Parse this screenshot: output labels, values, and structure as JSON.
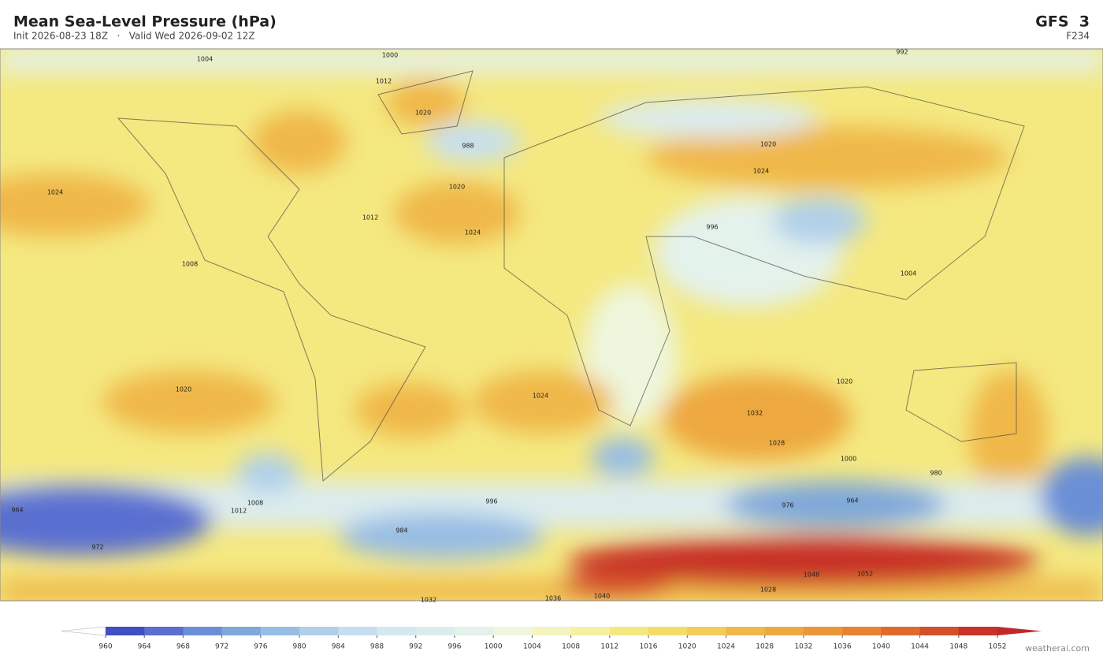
{
  "header": {
    "title": "Mean Sea-Level Pressure  (hPa)",
    "subtitle": "Init 2026-08-23 18Z   ·   Valid Wed 2026-09-02 12Z",
    "model": "GFS  3",
    "forecast_hour": "F234"
  },
  "map": {
    "contour_labels": [
      1004,
      1000,
      992,
      1012,
      1020,
      988,
      1024,
      1020,
      1024,
      1012,
      1008,
      1020,
      1024,
      996,
      1004,
      1020,
      1024,
      1032,
      1028,
      1020,
      964,
      972,
      984,
      976,
      964,
      1052,
      1048,
      1040,
      1036,
      1032,
      1028,
      1008,
      1012,
      996,
      1000,
      980
    ]
  },
  "colorbar": {
    "ticks": [
      960,
      964,
      968,
      972,
      976,
      980,
      984,
      988,
      992,
      996,
      1000,
      1004,
      1008,
      1012,
      1016,
      1020,
      1024,
      1028,
      1032,
      1036,
      1040,
      1044,
      1048,
      1052
    ],
    "colors": [
      "#3f4fc4",
      "#5a6fd0",
      "#6b8fd6",
      "#7fa8da",
      "#98bde4",
      "#b0d0ea",
      "#c6dff0",
      "#d4e8f0",
      "#dcecee",
      "#e4f2ec",
      "#eef6de",
      "#f4f4c0",
      "#f6f0a0",
      "#f4e880",
      "#f4dc68",
      "#f2cc58",
      "#f0b84a",
      "#eea840",
      "#ec963a",
      "#e88234",
      "#e06a2e",
      "#d4502a",
      "#c83228"
    ],
    "under_color": "#ffffff",
    "over_color": "#c0282a"
  },
  "footer": {
    "credit": "weatherai.com"
  }
}
